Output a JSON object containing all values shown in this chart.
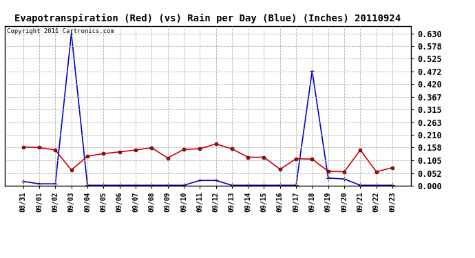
{
  "title": "Evapotranspiration (Red) (vs) Rain per Day (Blue) (Inches) 20110924",
  "copyright": "Copyright 2011 Cartronics.com",
  "x_labels": [
    "08/31",
    "09/01",
    "09/02",
    "09/03",
    "09/04",
    "09/05",
    "09/06",
    "09/07",
    "09/08",
    "09/09",
    "09/10",
    "09/11",
    "09/12",
    "09/13",
    "09/14",
    "09/15",
    "09/16",
    "09/17",
    "09/18",
    "09/19",
    "09/20",
    "09/21",
    "09/22",
    "09/23"
  ],
  "red_data": [
    0.16,
    0.158,
    0.148,
    0.065,
    0.122,
    0.133,
    0.14,
    0.148,
    0.157,
    0.115,
    0.15,
    0.153,
    0.173,
    0.153,
    0.118,
    0.118,
    0.068,
    0.112,
    0.11,
    0.06,
    0.058,
    0.148,
    0.058,
    0.075
  ],
  "blue_data": [
    0.018,
    0.008,
    0.008,
    0.63,
    0.002,
    0.002,
    0.002,
    0.002,
    0.002,
    0.002,
    0.002,
    0.022,
    0.022,
    0.002,
    0.002,
    0.002,
    0.002,
    0.002,
    0.475,
    0.032,
    0.028,
    0.002,
    0.002,
    0.002
  ],
  "ylim": [
    0.0,
    0.6615
  ],
  "yticks": [
    0.0,
    0.052,
    0.105,
    0.158,
    0.21,
    0.263,
    0.315,
    0.367,
    0.42,
    0.472,
    0.525,
    0.578,
    0.63
  ],
  "red_color": "#cc0000",
  "blue_color": "#0000cc",
  "bg_color": "#ffffff",
  "grid_color": "#b0b0b0",
  "title_fontsize": 10,
  "copyright_fontsize": 6.5,
  "tick_fontsize": 8.5,
  "xtick_fontsize": 7
}
